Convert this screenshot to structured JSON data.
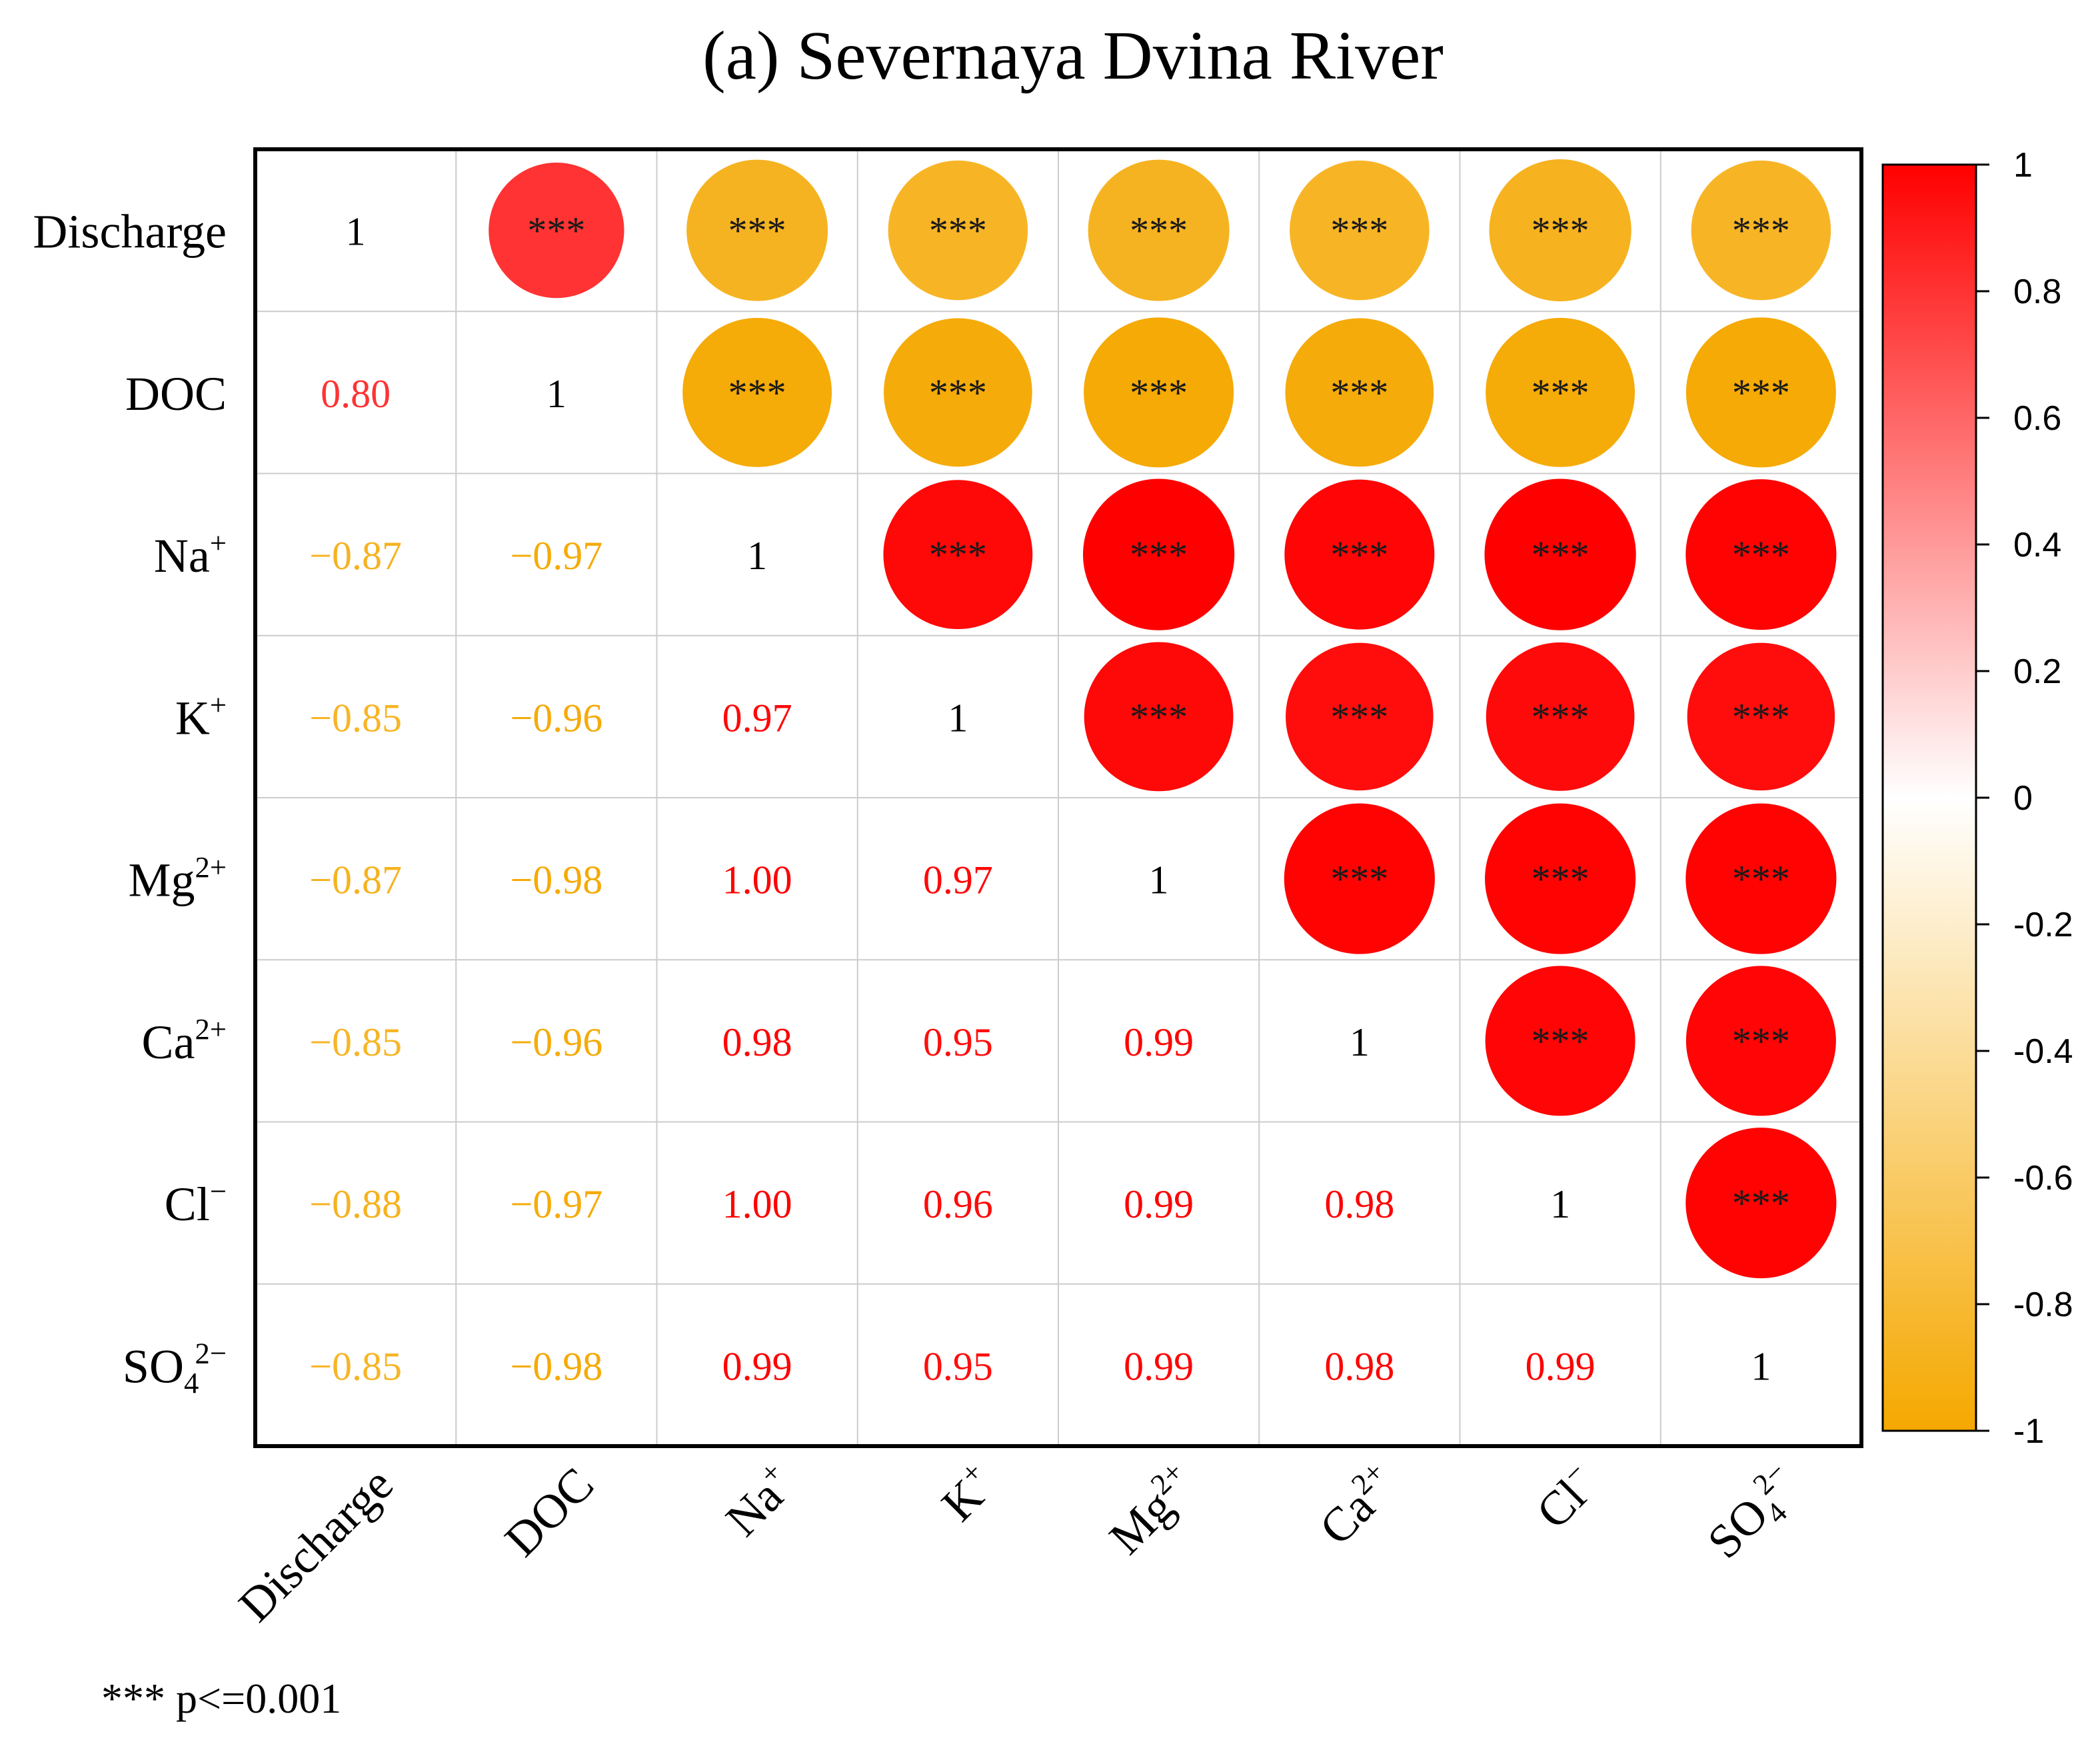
{
  "chart_data": {
    "type": "heatmap",
    "title": "(a) Severnaya Dvina River",
    "variables": [
      {
        "base": "Discharge",
        "sub": "",
        "sup": ""
      },
      {
        "base": "DOC",
        "sub": "",
        "sup": ""
      },
      {
        "base": "Na",
        "sub": "",
        "sup": "+"
      },
      {
        "base": "K",
        "sub": "",
        "sup": "+"
      },
      {
        "base": "Mg",
        "sub": "",
        "sup": "2+"
      },
      {
        "base": "Ca",
        "sub": "",
        "sup": "2+"
      },
      {
        "base": "Cl",
        "sub": "",
        "sup": "−"
      },
      {
        "base": "SO",
        "sub": "4",
        "sup": "2−"
      }
    ],
    "matrix": [
      [
        1,
        0.8,
        -0.87,
        -0.85,
        -0.87,
        -0.85,
        -0.88,
        -0.85
      ],
      [
        0.8,
        1,
        -0.97,
        -0.96,
        -0.98,
        -0.96,
        -0.97,
        -0.98
      ],
      [
        -0.87,
        -0.97,
        1,
        0.97,
        1.0,
        0.98,
        1.0,
        0.99
      ],
      [
        -0.85,
        -0.96,
        0.97,
        1,
        0.97,
        0.95,
        0.96,
        0.95
      ],
      [
        -0.87,
        -0.98,
        1.0,
        0.97,
        1,
        0.99,
        0.99,
        0.99
      ],
      [
        -0.85,
        -0.96,
        0.98,
        0.95,
        0.99,
        1,
        0.98,
        0.98
      ],
      [
        -0.88,
        -0.97,
        1.0,
        0.96,
        0.99,
        0.98,
        1,
        0.99
      ],
      [
        -0.85,
        -0.98,
        0.99,
        0.95,
        0.99,
        0.98,
        0.99,
        1
      ]
    ],
    "lower_triangle": "numbers",
    "upper_triangle": "circles",
    "significance_marker": "***",
    "significance_note": "*** p<=0.001",
    "colorbar": {
      "ticks": [
        "1",
        "0.8",
        "0.6",
        "0.4",
        "0.2",
        "0",
        "-0.2",
        "-0.4",
        "-0.6",
        "-0.8",
        "-1"
      ],
      "range": [
        -1,
        1
      ]
    },
    "colors": {
      "positive": "#ff0000",
      "neutral": "#ffffff",
      "negative": "#f5a800"
    }
  }
}
